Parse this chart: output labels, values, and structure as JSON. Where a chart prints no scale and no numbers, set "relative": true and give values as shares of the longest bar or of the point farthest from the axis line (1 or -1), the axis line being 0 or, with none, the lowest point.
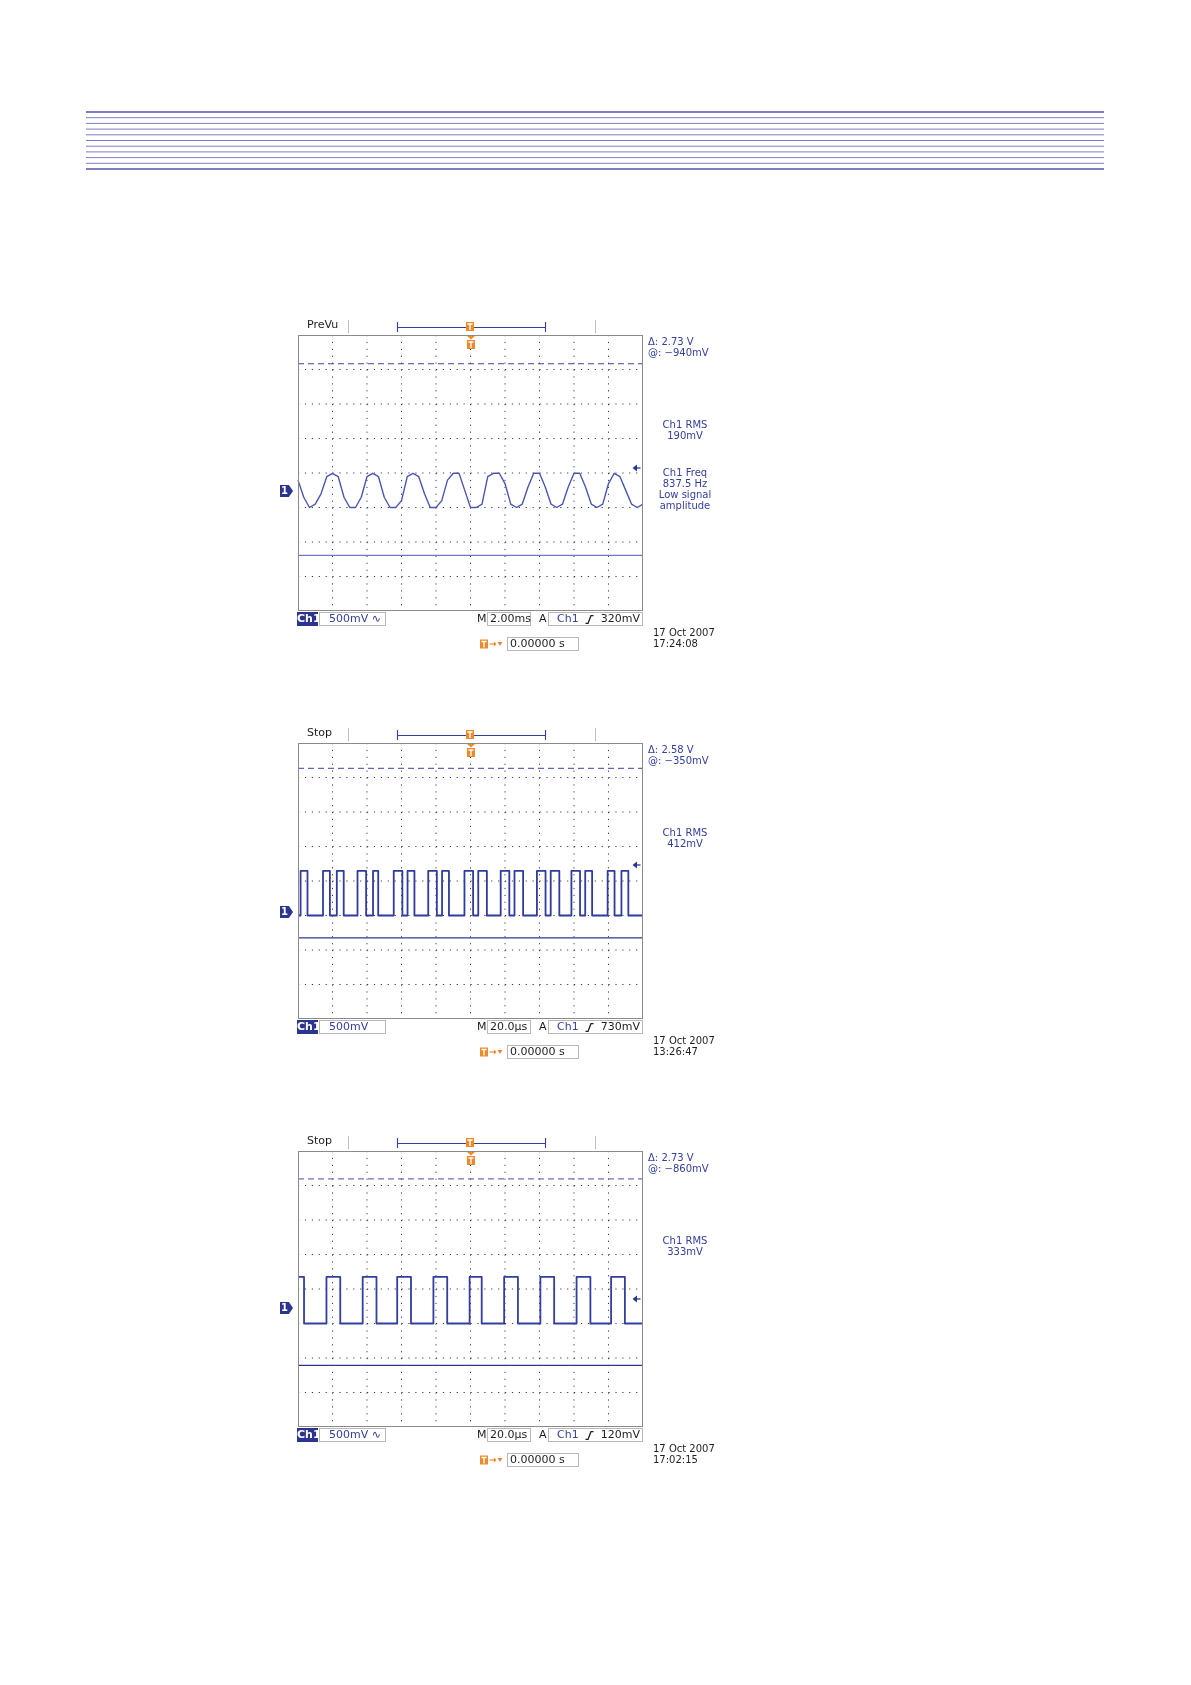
{
  "chart_data": [
    {
      "type": "line",
      "relative": true,
      "categories": [
        null,
        null,
        null,
        null,
        null,
        null,
        null,
        null,
        null,
        null,
        null,
        null,
        null,
        null,
        null,
        null,
        null,
        null,
        null,
        null,
        null,
        null,
        null,
        null,
        null,
        null,
        null,
        null,
        null,
        null,
        null,
        null,
        null,
        null,
        null,
        null,
        null,
        null,
        null,
        null,
        null,
        null,
        null,
        null,
        null,
        null,
        null,
        null,
        null,
        null,
        null,
        null,
        null,
        null,
        null,
        null,
        null,
        null,
        null,
        null,
        null
      ],
      "values": [
        0.8,
        0.3,
        0,
        0.1,
        0.4,
        0.9,
        1,
        0.9,
        0.3,
        0,
        0,
        0.3,
        0.9,
        1,
        0.9,
        0.3,
        0,
        0,
        0.2,
        0.9,
        1,
        0.9,
        0.4,
        0,
        0,
        0.2,
        0.8,
        1,
        1,
        0.5,
        0,
        0,
        0.1,
        0.9,
        1,
        1,
        0.7,
        0.1,
        0,
        0.1,
        0.6,
        1,
        1,
        0.6,
        0.1,
        0,
        0.1,
        0.6,
        1,
        1,
        0.6,
        0.1,
        0,
        0.1,
        0.7,
        1,
        0.9,
        0.5,
        0.1,
        0,
        0.1
      ],
      "color": "#4a56b4",
      "grid": true,
      "ref_lines": [
        {
          "axis": "y",
          "value": 4.2,
          "color": "#3a44a0",
          "line_style": "dashed"
        },
        {
          "axis": "y",
          "value": -1.4,
          "color": "#6f78c8",
          "line_style": "solid"
        }
      ],
      "annotations": [
        "PreVu",
        "Ch1",
        "500mV ∿",
        "M",
        "2.00ms",
        "A",
        "Ch1",
        "320mV",
        "0.00000 s",
        "17 Oct 2007\n17:24:08",
        "Δ: 2.73 V\n@: −940mV",
        "1",
        "Ch1 RMS\n190mV",
        "Ch1 Freq\n837.5 Hz\nLow signal\namplitude"
      ]
    },
    {
      "type": "step",
      "relative": true,
      "categories": [
        null,
        null,
        null,
        null,
        null,
        null,
        null,
        null,
        null,
        null,
        null,
        null,
        null,
        null,
        null,
        null,
        null,
        null,
        null,
        null,
        null,
        null,
        null,
        null,
        null,
        null,
        null,
        null,
        null,
        null,
        null,
        null,
        null,
        null,
        null,
        null,
        null,
        null,
        null,
        null,
        null,
        null,
        null,
        null,
        null,
        null,
        null,
        null,
        null,
        null,
        null,
        null,
        null,
        null,
        null,
        null,
        null,
        null,
        null,
        null,
        null,
        null,
        null,
        null,
        null,
        null,
        null,
        null,
        null,
        null,
        null,
        null,
        null,
        null,
        null,
        null,
        null,
        null,
        null,
        null,
        null,
        null,
        null,
        null,
        null,
        null,
        null,
        null,
        null,
        null,
        null,
        null,
        null,
        null,
        null,
        null,
        null,
        null,
        null,
        null,
        null,
        null,
        null,
        null,
        null,
        null,
        null,
        null,
        null,
        null,
        null,
        null,
        null,
        null,
        null,
        null,
        null,
        null,
        null,
        null,
        null,
        null,
        null,
        null,
        null,
        null,
        null,
        null,
        null,
        null,
        null,
        null,
        null,
        null,
        null,
        null,
        null,
        null,
        null,
        null,
        null,
        null,
        null,
        null,
        null,
        null,
        null,
        null,
        null,
        null,
        null,
        null,
        null,
        null,
        null,
        null,
        null,
        null,
        null,
        null,
        null,
        null,
        null,
        null,
        null,
        null,
        null,
        null,
        null,
        null,
        null,
        null,
        null,
        null,
        null,
        null,
        null,
        null,
        null,
        null,
        null,
        null,
        null,
        null,
        null,
        null,
        null,
        null,
        null,
        null,
        null,
        null,
        null,
        null,
        null,
        null,
        null,
        null,
        null,
        null,
        null
      ],
      "values": [
        0,
        0,
        1,
        1,
        1,
        1,
        0,
        0,
        0,
        0,
        0,
        0,
        0,
        0,
        0,
        1,
        1,
        1,
        1,
        0,
        0,
        0,
        0,
        1,
        1,
        1,
        1,
        0,
        0,
        0,
        0,
        0,
        0,
        0,
        0,
        1,
        1,
        1,
        1,
        1,
        0,
        0,
        0,
        0,
        1,
        1,
        1,
        0,
        0,
        0,
        0,
        0,
        0,
        0,
        0,
        0,
        1,
        1,
        1,
        1,
        1,
        0,
        0,
        0,
        1,
        1,
        1,
        1,
        0,
        0,
        0,
        0,
        0,
        0,
        0,
        0,
        1,
        1,
        1,
        1,
        1,
        0,
        0,
        0,
        1,
        1,
        1,
        1,
        0,
        0,
        0,
        0,
        0,
        0,
        0,
        0,
        0,
        1,
        1,
        1,
        1,
        1,
        0,
        0,
        0,
        1,
        1,
        1,
        1,
        1,
        0,
        0,
        0,
        0,
        0,
        0,
        0,
        0,
        1,
        1,
        1,
        1,
        1,
        0,
        0,
        0,
        1,
        1,
        1,
        1,
        1,
        0,
        0,
        0,
        0,
        0,
        0,
        0,
        0,
        1,
        1,
        1,
        1,
        1,
        0,
        0,
        0,
        1,
        1,
        1,
        1,
        1,
        0,
        0,
        0,
        0,
        0,
        0,
        0,
        1,
        1,
        1,
        1,
        1,
        0,
        0,
        0,
        1,
        1,
        1,
        1,
        0,
        0,
        0,
        0,
        0,
        0,
        0,
        0,
        0,
        1,
        1,
        1,
        1,
        0,
        0,
        0,
        0,
        1,
        1,
        1,
        1,
        0,
        0,
        0,
        0,
        0,
        0,
        0,
        0,
        0
      ],
      "color": "#2f3c9e",
      "grid": true,
      "ref_lines": [
        {
          "axis": "y",
          "value": 3.3,
          "color": "#5b66b4",
          "line_style": "dashed"
        },
        {
          "axis": "y",
          "value": -0.5,
          "color": "#2e3a94",
          "line_style": "solid"
        }
      ],
      "annotations": [
        "Stop",
        "Ch1",
        "500mV",
        "M",
        "20.0µs",
        "A",
        "Ch1",
        "730mV",
        "0.00000 s",
        "17 Oct 2007\n13:26:47",
        "Δ: 2.58 V\n@: −350mV",
        "1",
        "Ch1 RMS\n412mV"
      ]
    },
    {
      "type": "step",
      "relative": true,
      "categories": [
        null,
        null,
        null,
        null,
        null,
        null,
        null,
        null,
        null,
        null,
        null,
        null,
        null,
        null,
        null,
        null,
        null,
        null,
        null,
        null,
        null,
        null,
        null,
        null,
        null,
        null,
        null,
        null,
        null,
        null,
        null,
        null,
        null,
        null,
        null,
        null,
        null,
        null,
        null,
        null,
        null,
        null,
        null,
        null,
        null,
        null,
        null,
        null,
        null,
        null,
        null,
        null,
        null,
        null,
        null,
        null,
        null,
        null,
        null,
        null,
        null,
        null,
        null,
        null,
        null,
        null,
        null,
        null,
        null,
        null,
        null,
        null,
        null,
        null,
        null,
        null,
        null,
        null,
        null,
        null,
        null,
        null,
        null,
        null,
        null,
        null,
        null,
        null,
        null,
        null,
        null,
        null,
        null,
        null,
        null,
        null,
        null,
        null,
        null,
        null,
        null,
        null,
        null,
        null,
        null,
        null,
        null,
        null,
        null,
        null,
        null,
        null,
        null,
        null,
        null,
        null,
        null,
        null,
        null,
        null,
        null,
        null,
        null,
        null,
        null,
        null,
        null,
        null,
        null,
        null,
        null,
        null,
        null,
        null,
        null,
        null,
        null,
        null,
        null,
        null,
        null,
        null,
        null,
        null,
        null,
        null,
        null,
        null,
        null,
        null,
        null,
        null,
        null,
        null,
        null,
        null,
        null,
        null,
        null,
        null,
        null,
        null,
        null,
        null,
        null,
        null,
        null,
        null,
        null,
        null,
        null,
        null,
        null,
        null,
        null,
        null,
        null,
        null,
        null,
        null,
        null,
        null,
        null,
        null,
        null,
        null,
        null,
        null,
        null,
        null,
        null,
        null,
        null,
        null,
        null,
        null,
        null,
        null,
        null,
        null,
        null
      ],
      "values": [
        1,
        1,
        1,
        1,
        0,
        0,
        0,
        0,
        0,
        0,
        0,
        0,
        0,
        0,
        0,
        0,
        0,
        1,
        1,
        1,
        1,
        1,
        1,
        1,
        1,
        0,
        0,
        0,
        0,
        0,
        0,
        0,
        0,
        0,
        0,
        0,
        0,
        0,
        1,
        1,
        1,
        1,
        1,
        1,
        1,
        1,
        0,
        0,
        0,
        0,
        0,
        0,
        0,
        0,
        0,
        0,
        0,
        0,
        1,
        1,
        1,
        1,
        1,
        1,
        1,
        1,
        0,
        0,
        0,
        0,
        0,
        0,
        0,
        0,
        0,
        0,
        0,
        0,
        0,
        1,
        1,
        1,
        1,
        1,
        1,
        1,
        1,
        0,
        0,
        0,
        0,
        0,
        0,
        0,
        0,
        0,
        0,
        0,
        0,
        0,
        1,
        1,
        1,
        1,
        1,
        1,
        1,
        0,
        0,
        0,
        0,
        0,
        0,
        0,
        0,
        0,
        0,
        0,
        0,
        0,
        1,
        1,
        1,
        1,
        1,
        1,
        1,
        1,
        0,
        0,
        0,
        0,
        0,
        0,
        0,
        0,
        0,
        0,
        0,
        0,
        0,
        1,
        1,
        1,
        1,
        1,
        1,
        1,
        1,
        0,
        0,
        0,
        0,
        0,
        0,
        0,
        0,
        0,
        0,
        0,
        0,
        0,
        1,
        1,
        1,
        1,
        1,
        1,
        1,
        1,
        0,
        0,
        0,
        0,
        0,
        0,
        0,
        0,
        0,
        0,
        0,
        0,
        1,
        1,
        1,
        1,
        1,
        1,
        1,
        1,
        0,
        0,
        0,
        0,
        0,
        0,
        0,
        0,
        0,
        0,
        0
      ],
      "color": "#323fa0",
      "grid": true,
      "ref_lines": [
        {
          "axis": "y",
          "value": 3.1,
          "color": "#6a72c0",
          "line_style": "dashed"
        },
        {
          "axis": "y",
          "value": -0.9,
          "color": "#2a3590",
          "line_style": "solid"
        }
      ],
      "annotations": [
        "Stop",
        "Ch1",
        "500mV ∿",
        "M",
        "20.0µs",
        "A",
        "Ch1",
        "120mV",
        "0.00000 s",
        "17 Oct 2007\n17:02:15",
        "Δ: 2.73 V\n@: −860mV",
        "1",
        "Ch1 RMS\n333mV"
      ]
    }
  ]
}
